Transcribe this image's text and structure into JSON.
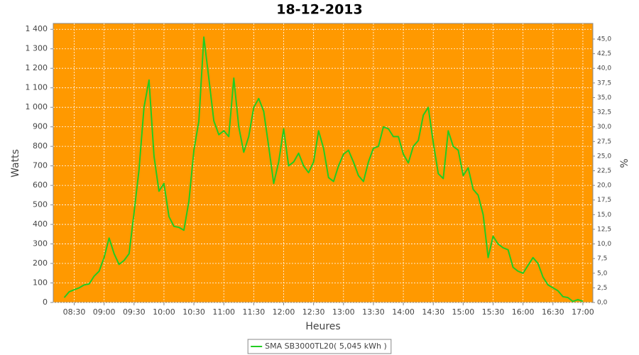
{
  "chart_data": {
    "type": "line",
    "title": "18-12-2013",
    "x_label": "Heures",
    "y_label": "Watts",
    "y2_label": "%",
    "x": [
      "08:20",
      "08:25",
      "08:30",
      "08:35",
      "08:40",
      "08:45",
      "08:50",
      "08:55",
      "09:00",
      "09:05",
      "09:10",
      "09:15",
      "09:20",
      "09:25",
      "09:30",
      "09:35",
      "09:40",
      "09:45",
      "09:50",
      "09:55",
      "10:00",
      "10:05",
      "10:10",
      "10:15",
      "10:20",
      "10:25",
      "10:30",
      "10:35",
      "10:40",
      "10:45",
      "10:50",
      "10:55",
      "11:00",
      "11:05",
      "11:10",
      "11:15",
      "11:20",
      "11:25",
      "11:30",
      "11:35",
      "11:40",
      "11:45",
      "11:50",
      "11:55",
      "12:00",
      "12:05",
      "12:10",
      "12:15",
      "12:20",
      "12:25",
      "12:30",
      "12:35",
      "12:40",
      "12:45",
      "12:50",
      "12:55",
      "13:00",
      "13:05",
      "13:10",
      "13:15",
      "13:20",
      "13:25",
      "13:30",
      "13:35",
      "13:40",
      "13:45",
      "13:50",
      "13:55",
      "14:00",
      "14:05",
      "14:10",
      "14:15",
      "14:20",
      "14:25",
      "14:30",
      "14:35",
      "14:40",
      "14:45",
      "14:50",
      "14:55",
      "15:00",
      "15:05",
      "15:10",
      "15:15",
      "15:20",
      "15:25",
      "15:30",
      "15:35",
      "15:40",
      "15:45",
      "15:50",
      "15:55",
      "16:00",
      "16:05",
      "16:10",
      "16:15",
      "16:20",
      "16:25",
      "16:30",
      "16:35",
      "16:40",
      "16:45",
      "16:50",
      "16:55",
      "17:00"
    ],
    "series": [
      {
        "name": "SMA SB3000TL20( 5,045 kWh )",
        "color": "#22cc22",
        "values": [
          25,
          55,
          65,
          75,
          90,
          95,
          135,
          160,
          230,
          330,
          250,
          195,
          215,
          250,
          460,
          680,
          1000,
          1140,
          750,
          570,
          610,
          440,
          390,
          385,
          370,
          520,
          780,
          930,
          1360,
          1150,
          930,
          860,
          880,
          850,
          1150,
          900,
          770,
          850,
          1000,
          1045,
          980,
          800,
          610,
          720,
          890,
          700,
          720,
          765,
          700,
          665,
          720,
          880,
          790,
          640,
          620,
          700,
          760,
          780,
          720,
          650,
          620,
          720,
          790,
          800,
          900,
          890,
          850,
          850,
          760,
          715,
          800,
          830,
          960,
          1000,
          820,
          660,
          635,
          880,
          800,
          780,
          650,
          690,
          580,
          550,
          450,
          230,
          340,
          300,
          280,
          270,
          180,
          160,
          150,
          190,
          230,
          200,
          130,
          90,
          75,
          60,
          30,
          25,
          5,
          15,
          5
        ]
      }
    ],
    "xlim": [
      "08:09",
      "17:10"
    ],
    "xticks": [
      "08:30",
      "09:00",
      "09:30",
      "10:00",
      "10:30",
      "11:00",
      "11:30",
      "12:00",
      "12:30",
      "13:00",
      "13:30",
      "14:00",
      "14:30",
      "15:00",
      "15:30",
      "16:00",
      "16:30",
      "17:00"
    ],
    "ylim": [
      0,
      1430
    ],
    "yticks": [
      0,
      100,
      200,
      300,
      400,
      500,
      600,
      700,
      800,
      900,
      {
        "value": 1000,
        "label": "1 000"
      },
      {
        "value": 1100,
        "label": "1 100"
      },
      {
        "value": 1200,
        "label": "1 200"
      },
      {
        "value": 1300,
        "label": "1 300"
      },
      {
        "value": 1400,
        "label": "1 400"
      }
    ],
    "y2lim": [
      0,
      47.67
    ],
    "y2ticks": [
      {
        "value": 0,
        "label": "0,0"
      },
      {
        "value": 2.5,
        "label": "2,5"
      },
      {
        "value": 5,
        "label": "5,0"
      },
      {
        "value": 7.5,
        "label": "7,5"
      },
      {
        "value": 10,
        "label": "10,0"
      },
      {
        "value": 12.5,
        "label": "12,5"
      },
      {
        "value": 15,
        "label": "15,0"
      },
      {
        "value": 17.5,
        "label": "17,5"
      },
      {
        "value": 20,
        "label": "20,0"
      },
      {
        "value": 22.5,
        "label": "22,5"
      },
      {
        "value": 25,
        "label": "25,0"
      },
      {
        "value": 27.5,
        "label": "27,5"
      },
      {
        "value": 30,
        "label": "30,0"
      },
      {
        "value": 32.5,
        "label": "32,5"
      },
      {
        "value": 35,
        "label": "35,0"
      },
      {
        "value": 37.5,
        "label": "37,5"
      },
      {
        "value": 40,
        "label": "40,0"
      },
      {
        "value": 42.5,
        "label": "42,5"
      },
      {
        "value": 45,
        "label": "45,0"
      }
    ],
    "grid": true,
    "plot_color": "#ff9900",
    "legend": "bottom"
  }
}
